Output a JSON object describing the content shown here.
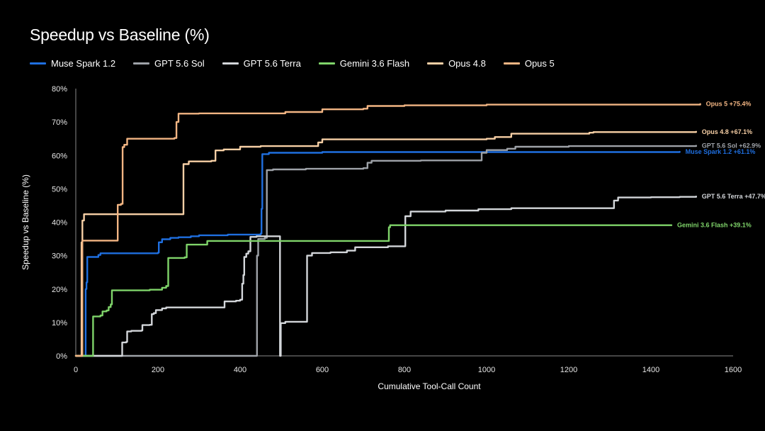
{
  "chart_data": {
    "type": "line",
    "title": "Speedup vs Baseline (%)",
    "xlabel": "Cumulative Tool-Call Count",
    "ylabel": "Speedup vs Baseline (%)",
    "xlim": [
      0,
      1600
    ],
    "ylim": [
      0,
      80
    ],
    "xticks": [
      0,
      200,
      400,
      600,
      800,
      1000,
      1200,
      1400,
      1600
    ],
    "xtick_labels": [
      "0",
      "200",
      "400",
      "600",
      "800",
      "1000",
      "1200",
      "1400",
      "1600"
    ],
    "yticks": [
      0,
      10,
      20,
      30,
      40,
      50,
      60,
      70,
      80
    ],
    "ytick_labels": [
      "0%",
      "10%",
      "20%",
      "30%",
      "40%",
      "50%",
      "60%",
      "70%",
      "80%"
    ],
    "grid": false,
    "legend_position": "top-left",
    "series": [
      {
        "name": "Muse Spark 1.2",
        "color": "#1f6fe0",
        "end_label": "Muse Spark 1.2 +61.1%",
        "points": [
          [
            0,
            0
          ],
          [
            22,
            0
          ],
          [
            24,
            20
          ],
          [
            26,
            22
          ],
          [
            28,
            29.6
          ],
          [
            55,
            30.2
          ],
          [
            60,
            30.7
          ],
          [
            200,
            30.9
          ],
          [
            202,
            34
          ],
          [
            210,
            34.9
          ],
          [
            230,
            35.3
          ],
          [
            250,
            35.5
          ],
          [
            280,
            35.8
          ],
          [
            300,
            36.1
          ],
          [
            370,
            36.3
          ],
          [
            450,
            36.6
          ],
          [
            452,
            44
          ],
          [
            454,
            60.4
          ],
          [
            470,
            60.8
          ],
          [
            600,
            61
          ],
          [
            1470,
            61.1
          ]
        ]
      },
      {
        "name": "GPT 5.6 Sol",
        "color": "#9ea2a8",
        "end_label": "GPT 5.6 Sol +62.9%",
        "points": [
          [
            0,
            0
          ],
          [
            440,
            0
          ],
          [
            441,
            30
          ],
          [
            444,
            35
          ],
          [
            460,
            35.3
          ],
          [
            465,
            55.6
          ],
          [
            480,
            55.8
          ],
          [
            560,
            56
          ],
          [
            700,
            56.2
          ],
          [
            710,
            57.8
          ],
          [
            720,
            58.4
          ],
          [
            840,
            58.5
          ],
          [
            985,
            58.5
          ],
          [
            988,
            60.8
          ],
          [
            1000,
            61.6
          ],
          [
            1050,
            62
          ],
          [
            1070,
            62.6
          ],
          [
            1200,
            62.8
          ],
          [
            1510,
            62.9
          ]
        ]
      },
      {
        "name": "GPT 5.6 Terra",
        "color": "#d3d6da",
        "end_label": "GPT 5.6 Terra +47.7%",
        "points": [
          [
            0,
            0
          ],
          [
            110,
            0
          ],
          [
            113,
            4
          ],
          [
            123,
            4.2
          ],
          [
            125,
            7.3
          ],
          [
            135,
            7.5
          ],
          [
            160,
            7.6
          ],
          [
            162,
            9.2
          ],
          [
            180,
            9.3
          ],
          [
            185,
            12.5
          ],
          [
            190,
            12.8
          ],
          [
            195,
            13.7
          ],
          [
            210,
            14.2
          ],
          [
            220,
            14.5
          ],
          [
            360,
            14.5
          ],
          [
            362,
            16.3
          ],
          [
            390,
            16.5
          ],
          [
            400,
            16.8
          ],
          [
            405,
            21.6
          ],
          [
            408,
            24.2
          ],
          [
            410,
            29.6
          ],
          [
            415,
            30.6
          ],
          [
            420,
            31.3
          ],
          [
            425,
            35.6
          ],
          [
            440,
            35.8
          ],
          [
            470,
            35.8
          ],
          [
            497,
            0
          ],
          [
            499,
            9.8
          ],
          [
            510,
            10.2
          ],
          [
            560,
            10.2
          ],
          [
            563,
            30
          ],
          [
            575,
            30.8
          ],
          [
            620,
            31
          ],
          [
            660,
            31.5
          ],
          [
            680,
            32.5
          ],
          [
            760,
            32.8
          ],
          [
            800,
            32.8
          ],
          [
            802,
            41.8
          ],
          [
            815,
            43.2
          ],
          [
            900,
            43.5
          ],
          [
            980,
            43.9
          ],
          [
            1060,
            44.2
          ],
          [
            1300,
            44.2
          ],
          [
            1310,
            46.5
          ],
          [
            1320,
            47.4
          ],
          [
            1400,
            47.5
          ],
          [
            1470,
            47.6
          ],
          [
            1510,
            47.7
          ]
        ]
      },
      {
        "name": "Gemini 3.6 Flash",
        "color": "#7fd46a",
        "end_label": "Gemini 3.6 Flash +39.1%",
        "points": [
          [
            0,
            0
          ],
          [
            40,
            0
          ],
          [
            42,
            11.8
          ],
          [
            60,
            12.1
          ],
          [
            65,
            13.3
          ],
          [
            75,
            13.6
          ],
          [
            80,
            14.6
          ],
          [
            85,
            15.4
          ],
          [
            88,
            19.6
          ],
          [
            180,
            19.8
          ],
          [
            210,
            20.4
          ],
          [
            220,
            20.9
          ],
          [
            225,
            29.3
          ],
          [
            265,
            29.5
          ],
          [
            270,
            33.3
          ],
          [
            300,
            33.3
          ],
          [
            320,
            34.4
          ],
          [
            760,
            34.4
          ],
          [
            762,
            38.5
          ],
          [
            765,
            39.1
          ],
          [
            1450,
            39.1
          ]
        ]
      },
      {
        "name": "Opus 4.8",
        "color": "#f7cfa5",
        "end_label": "Opus 4.8 +67.1%",
        "points": [
          [
            0,
            0
          ],
          [
            12,
            0
          ],
          [
            14,
            34
          ],
          [
            16,
            40.5
          ],
          [
            20,
            42.4
          ],
          [
            260,
            42.4
          ],
          [
            262,
            57.4
          ],
          [
            275,
            58.2
          ],
          [
            330,
            58.4
          ],
          [
            340,
            61.5
          ],
          [
            360,
            61.8
          ],
          [
            400,
            62.6
          ],
          [
            450,
            62.8
          ],
          [
            560,
            62.8
          ],
          [
            590,
            63.9
          ],
          [
            600,
            64.8
          ],
          [
            1000,
            65
          ],
          [
            1020,
            65.5
          ],
          [
            1060,
            66.5
          ],
          [
            1250,
            66.8
          ],
          [
            1260,
            67
          ],
          [
            1510,
            67.1
          ]
        ]
      },
      {
        "name": "Opus 5",
        "color": "#f2b583",
        "end_label": "Opus 5 +75.4%",
        "points": [
          [
            0,
            0
          ],
          [
            14,
            0
          ],
          [
            16,
            34.5
          ],
          [
            100,
            34.5
          ],
          [
            102,
            45.2
          ],
          [
            110,
            45.5
          ],
          [
            114,
            62.5
          ],
          [
            118,
            63.2
          ],
          [
            125,
            65
          ],
          [
            240,
            65.2
          ],
          [
            245,
            70
          ],
          [
            250,
            72.5
          ],
          [
            300,
            72.6
          ],
          [
            400,
            72.6
          ],
          [
            500,
            72.6
          ],
          [
            510,
            73
          ],
          [
            590,
            73
          ],
          [
            600,
            73.8
          ],
          [
            700,
            74
          ],
          [
            710,
            74.8
          ],
          [
            800,
            75
          ],
          [
            1000,
            75.2
          ],
          [
            1520,
            75.4
          ]
        ]
      }
    ]
  }
}
